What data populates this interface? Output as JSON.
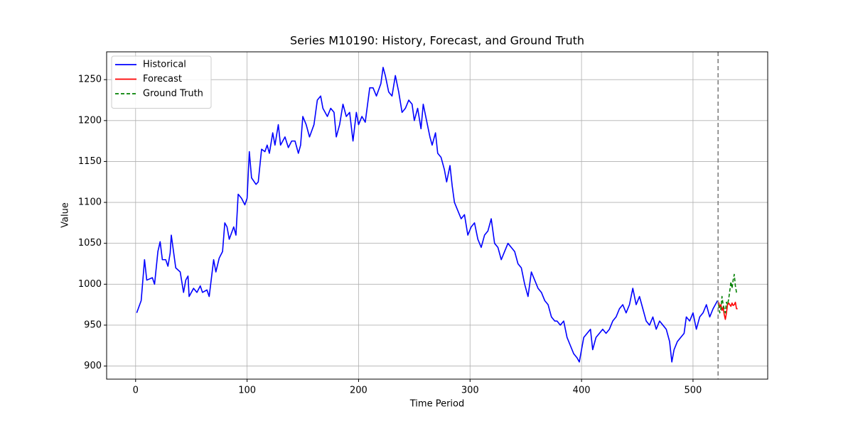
{
  "chart_data": {
    "type": "line",
    "title": "Series M10190: History, Forecast, and Ground Truth",
    "x_label": "Time Period",
    "y_label": "Value",
    "xlim": [
      -26,
      567
    ],
    "ylim": [
      884,
      1284
    ],
    "xticks": [
      0,
      100,
      200,
      300,
      400,
      500
    ],
    "yticks": [
      900,
      950,
      1000,
      1050,
      1100,
      1150,
      1200,
      1250
    ],
    "grid": true,
    "legend": "upper left",
    "vline": 522.5,
    "series": [
      {
        "name": "Historical",
        "color": "#0000ff",
        "dash": "solid",
        "x": [
          1,
          5,
          8,
          10,
          15,
          17,
          20,
          22,
          24,
          27,
          29,
          31,
          32,
          34,
          36,
          40,
          43,
          45,
          47,
          48,
          52,
          55,
          58,
          60,
          64,
          66,
          70,
          72,
          75,
          78,
          80,
          82,
          84,
          88,
          90,
          92,
          95,
          98,
          100,
          102,
          104,
          108,
          110,
          113,
          116,
          118,
          120,
          123,
          125,
          128,
          130,
          134,
          137,
          140,
          143,
          146,
          148,
          150,
          153,
          156,
          160,
          163,
          166,
          168,
          172,
          175,
          178,
          180,
          183,
          186,
          189,
          192,
          195,
          198,
          200,
          203,
          206,
          210,
          213,
          216,
          220,
          222,
          224,
          227,
          230,
          233,
          236,
          239,
          242,
          245,
          248,
          250,
          253,
          256,
          258,
          261,
          264,
          266,
          269,
          271,
          274,
          277,
          279,
          282,
          284,
          286,
          289,
          292,
          295,
          298,
          301,
          304,
          307,
          310,
          313,
          316,
          319,
          322,
          325,
          328,
          331,
          334,
          337,
          340,
          343,
          346,
          349,
          352,
          355,
          358,
          361,
          364,
          367,
          370,
          373,
          376,
          378,
          381,
          384,
          387,
          390,
          393,
          396,
          398,
          400,
          402,
          405,
          408,
          410,
          413,
          416,
          419,
          422,
          425,
          428,
          431,
          434,
          437,
          440,
          443,
          446,
          449,
          452,
          455,
          458,
          461,
          464,
          467,
          470,
          473,
          476,
          479,
          481,
          483,
          486,
          489,
          492,
          494,
          497,
          500,
          503,
          506,
          509,
          512,
          515,
          518,
          520,
          522
        ],
        "values": [
          965,
          980,
          1030,
          1005,
          1008,
          1000,
          1040,
          1052,
          1030,
          1030,
          1022,
          1038,
          1060,
          1040,
          1020,
          1015,
          990,
          1005,
          1010,
          985,
          995,
          990,
          998,
          990,
          993,
          985,
          1030,
          1015,
          1032,
          1040,
          1075,
          1070,
          1055,
          1070,
          1060,
          1110,
          1105,
          1097,
          1105,
          1162,
          1130,
          1122,
          1125,
          1165,
          1162,
          1170,
          1160,
          1185,
          1170,
          1195,
          1170,
          1180,
          1167,
          1175,
          1175,
          1160,
          1170,
          1205,
          1195,
          1180,
          1195,
          1225,
          1230,
          1215,
          1205,
          1215,
          1210,
          1180,
          1195,
          1220,
          1205,
          1210,
          1175,
          1210,
          1195,
          1205,
          1198,
          1240,
          1240,
          1230,
          1245,
          1265,
          1255,
          1235,
          1230,
          1255,
          1235,
          1210,
          1215,
          1225,
          1220,
          1200,
          1215,
          1190,
          1220,
          1200,
          1180,
          1170,
          1185,
          1160,
          1155,
          1140,
          1125,
          1145,
          1120,
          1100,
          1090,
          1080,
          1085,
          1060,
          1070,
          1075,
          1055,
          1045,
          1060,
          1065,
          1080,
          1050,
          1045,
          1030,
          1040,
          1050,
          1045,
          1040,
          1025,
          1020,
          1000,
          985,
          1015,
          1005,
          995,
          990,
          980,
          975,
          960,
          955,
          955,
          950,
          955,
          935,
          925,
          915,
          910,
          905,
          920,
          935,
          940,
          945,
          920,
          935,
          940,
          945,
          940,
          945,
          955,
          960,
          970,
          975,
          965,
          975,
          995,
          975,
          985,
          970,
          955,
          950,
          960,
          945,
          955,
          950,
          945,
          930,
          905,
          920,
          930,
          935,
          940,
          960,
          955,
          965,
          945,
          960,
          965,
          975,
          960,
          970,
          975,
          980
        ]
      },
      {
        "name": "Forecast",
        "color": "#ff0000",
        "dash": "solid",
        "x": [
          523,
          524,
          525,
          526,
          527,
          528,
          529,
          530,
          531,
          532,
          533,
          534,
          535,
          536,
          537,
          538,
          539,
          540
        ],
        "values": [
          978,
          972,
          975,
          968,
          972,
          963,
          957,
          965,
          975,
          977,
          975,
          973,
          977,
          974,
          975,
          978,
          970,
          970
        ]
      },
      {
        "name": "Ground Truth",
        "color": "#008000",
        "dash": "dashed",
        "x": [
          523,
          524,
          525,
          526,
          527,
          528,
          529,
          530,
          531,
          532,
          533,
          534,
          535,
          536,
          537,
          538,
          539,
          540
        ],
        "values": [
          975,
          965,
          970,
          985,
          975,
          970,
          965,
          978,
          975,
          982,
          992,
          1003,
          995,
          1005,
          1012,
          998,
          990,
          988
        ]
      }
    ]
  }
}
